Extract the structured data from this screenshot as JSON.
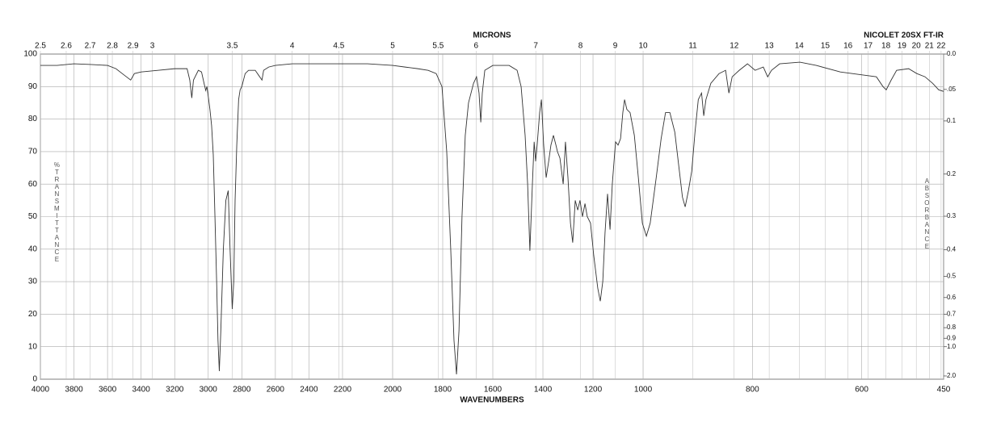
{
  "chart_data": {
    "type": "line",
    "title": "NICOLET 20SX FT-IR",
    "top_axis_label": "MICRONS",
    "x_label": "WAVENUMBERS",
    "y_label": "%TRANSMITTANCE",
    "y2_label": "ABSORBANCE",
    "color": "#333333",
    "grid": true,
    "xlim": [
      4000,
      450
    ],
    "xbreaks": [
      2200,
      1000
    ],
    "xticks": [
      4000,
      3800,
      3600,
      3400,
      3200,
      3000,
      2800,
      2600,
      2400,
      2200,
      2000,
      1800,
      1600,
      1400,
      1200,
      1000,
      800,
      600,
      450
    ],
    "top_ticks": [
      2.5,
      2.6,
      2.7,
      2.8,
      2.9,
      3,
      3.5,
      4,
      4.5,
      5,
      5.5,
      6,
      7,
      8,
      9,
      10,
      11,
      12,
      13,
      14,
      15,
      16,
      17,
      18,
      19,
      20,
      21,
      22
    ],
    "top_scale": "microns",
    "ylim": [
      0,
      100
    ],
    "yticks": [
      0,
      10,
      20,
      30,
      40,
      50,
      60,
      70,
      80,
      90,
      100
    ],
    "y2scale": "absorbance",
    "y2ticks": [
      {
        "value": 0,
        "label": "0.0"
      },
      {
        "value": 0.05,
        "label": ".05"
      },
      0.1,
      0.2,
      0.3,
      0.4,
      0.5,
      0.6,
      0.7,
      0.8,
      0.9,
      {
        "value": 1,
        "label": "1.0"
      },
      {
        "value": 2,
        "label": "2.0"
      }
    ],
    "x": [
      4000,
      3900,
      3800,
      3700,
      3600,
      3550,
      3500,
      3462,
      3440,
      3400,
      3300,
      3200,
      3126,
      3110,
      3098,
      3088,
      3059,
      3040,
      3025,
      3015,
      3008,
      3000,
      2990,
      2980,
      2970,
      2960,
      2950,
      2942,
      2934,
      2925,
      2910,
      2895,
      2881,
      2870,
      2857,
      2848,
      2840,
      2830,
      2819,
      2810,
      2800,
      2780,
      2760,
      2720,
      2700,
      2680,
      2670,
      2640,
      2600,
      2500,
      2400,
      2300,
      2200,
      2100,
      2000,
      1950,
      1900,
      1858,
      1826,
      1803,
      1784,
      1768,
      1755,
      1745,
      1735,
      1723,
      1710,
      1697,
      1677,
      1665,
      1655,
      1648,
      1642,
      1632,
      1600,
      1535,
      1503,
      1487,
      1471,
      1461,
      1452,
      1442,
      1435,
      1429,
      1423,
      1413,
      1406,
      1397,
      1387,
      1377,
      1368,
      1358,
      1348,
      1342,
      1332,
      1319,
      1310,
      1300,
      1290,
      1281,
      1271,
      1261,
      1252,
      1242,
      1232,
      1223,
      1210,
      1197,
      1181,
      1171,
      1161,
      1152,
      1142,
      1132,
      1123,
      1110,
      1100,
      1090,
      1081,
      1074,
      1065,
      1052,
      1035,
      1019,
      1003,
      994,
      987,
      976,
      967,
      959,
      951,
      942,
      935,
      928,
      923,
      917,
      911,
      905,
      899,
      893,
      889,
      885,
      876,
      861,
      849,
      843,
      837,
      824,
      809,
      795,
      780,
      772,
      765,
      750,
      713,
      683,
      639,
      595,
      573,
      561,
      555,
      546,
      536,
      514,
      499,
      484,
      470,
      459,
      450
    ],
    "values": [
      96.5,
      96.5,
      97,
      96.8,
      96.5,
      95.5,
      93.5,
      92,
      94,
      94.5,
      95,
      95.5,
      95.5,
      92,
      86.5,
      92,
      95,
      94.5,
      91,
      88.8,
      90,
      87,
      83,
      78,
      69,
      50,
      30,
      12,
      2.5,
      15,
      40,
      55,
      58,
      40,
      21.6,
      30,
      55,
      72,
      86,
      89,
      90,
      94,
      95,
      95,
      93.5,
      92,
      95,
      96,
      96.5,
      97,
      97,
      97,
      97,
      97,
      96.5,
      96,
      95.5,
      95,
      94,
      90,
      70,
      40,
      12,
      1.5,
      15,
      50,
      75,
      85,
      91,
      93,
      88,
      79,
      88,
      95,
      96.5,
      96.5,
      95,
      90,
      75,
      60,
      39.5,
      60,
      73,
      67,
      72,
      82,
      86,
      72,
      62,
      67,
      72,
      75,
      72,
      70,
      68,
      60,
      73,
      62,
      48,
      42,
      55,
      52,
      55,
      50,
      54,
      50,
      48,
      38,
      28,
      24,
      30,
      45,
      57,
      46,
      60,
      73,
      72,
      74,
      82,
      86,
      83,
      82,
      75,
      62,
      48,
      44,
      48,
      62,
      74,
      82,
      82,
      76,
      66,
      56,
      53,
      58,
      64,
      76,
      86,
      88,
      81,
      86,
      91,
      94,
      95,
      88,
      93,
      95,
      97,
      95,
      96,
      93,
      95,
      97,
      97.5,
      96.5,
      94.5,
      93.5,
      93,
      90,
      89,
      92,
      95,
      95.5,
      94,
      93,
      91,
      89,
      88.5
    ]
  }
}
